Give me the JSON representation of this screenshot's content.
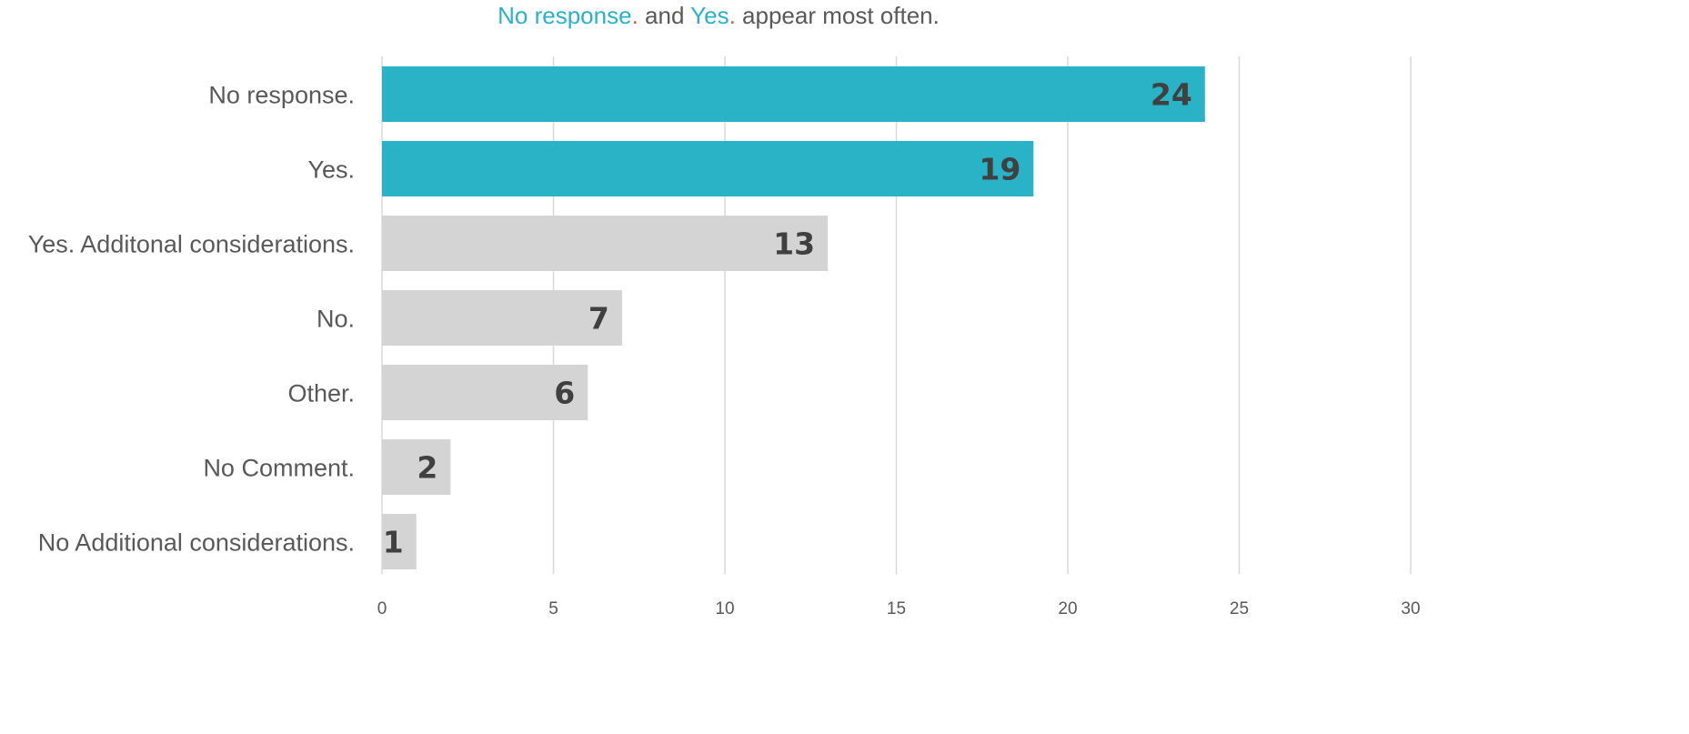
{
  "title": {
    "part1": "No response",
    "dot1": ".",
    "part2": " and ",
    "part3": "Yes",
    "dot2": ".",
    "part4": " appear most often."
  },
  "colors": {
    "highlight": "#2ab3c6",
    "default_bar": "#d4d4d4",
    "grid": "#d9d9d9",
    "text": "#595959",
    "value_text": "#404040",
    "title_dot": "#e0603a"
  },
  "chart_data": {
    "type": "bar",
    "orientation": "horizontal",
    "categories": [
      "No response.",
      "Yes.",
      "Yes. Additonal considerations.",
      "No.",
      "Other.",
      "No Comment.",
      "No Additional considerations."
    ],
    "values": [
      24,
      19,
      13,
      7,
      6,
      2,
      1
    ],
    "highlighted": [
      true,
      true,
      false,
      false,
      false,
      false,
      false
    ],
    "xlim": [
      0,
      30
    ],
    "xticks": [
      0,
      5,
      10,
      15,
      20,
      25,
      30
    ],
    "grid": "vertical",
    "legend": "none"
  }
}
